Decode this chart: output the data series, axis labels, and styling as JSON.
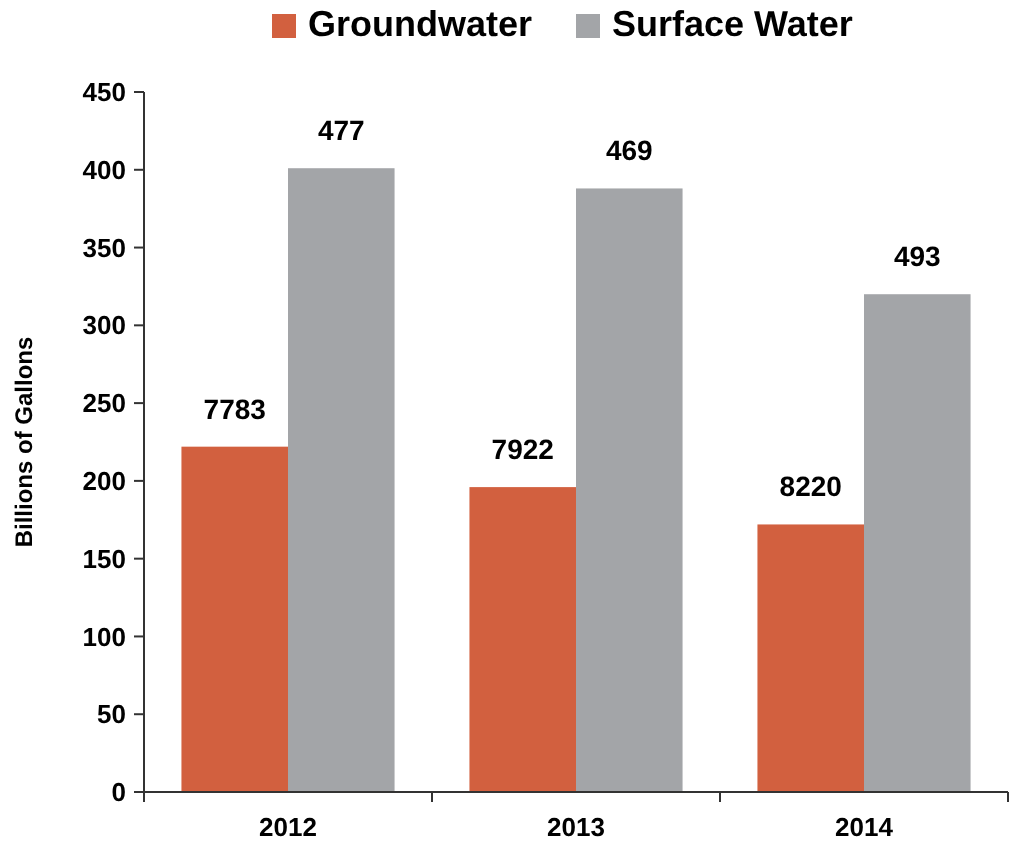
{
  "chart_data": {
    "type": "bar",
    "ylabel": "Billions of Gallons",
    "categories": [
      "2012",
      "2013",
      "2014"
    ],
    "series": [
      {
        "name": "Groundwater",
        "color": "#d2603f",
        "values": [
          222,
          196,
          172
        ]
      },
      {
        "name": "Surface Water",
        "color": "#a3a5a8",
        "values": [
          401,
          388,
          320
        ]
      }
    ],
    "annotations": [
      {
        "text": "7783",
        "x": "2012",
        "y": 222
      },
      {
        "text": "477",
        "x": "2012",
        "y": 401
      },
      {
        "text": "7922",
        "x": "2013",
        "y": 196
      },
      {
        "text": "469",
        "x": "2013",
        "y": 388
      },
      {
        "text": "8220",
        "x": "2014",
        "y": 172
      },
      {
        "text": "493",
        "x": "2014",
        "y": 320
      }
    ],
    "ylim": [
      0,
      450
    ],
    "yticks": [
      0,
      50,
      100,
      150,
      200,
      250,
      300,
      350,
      400,
      450
    ],
    "grid": false,
    "legend": "top"
  }
}
